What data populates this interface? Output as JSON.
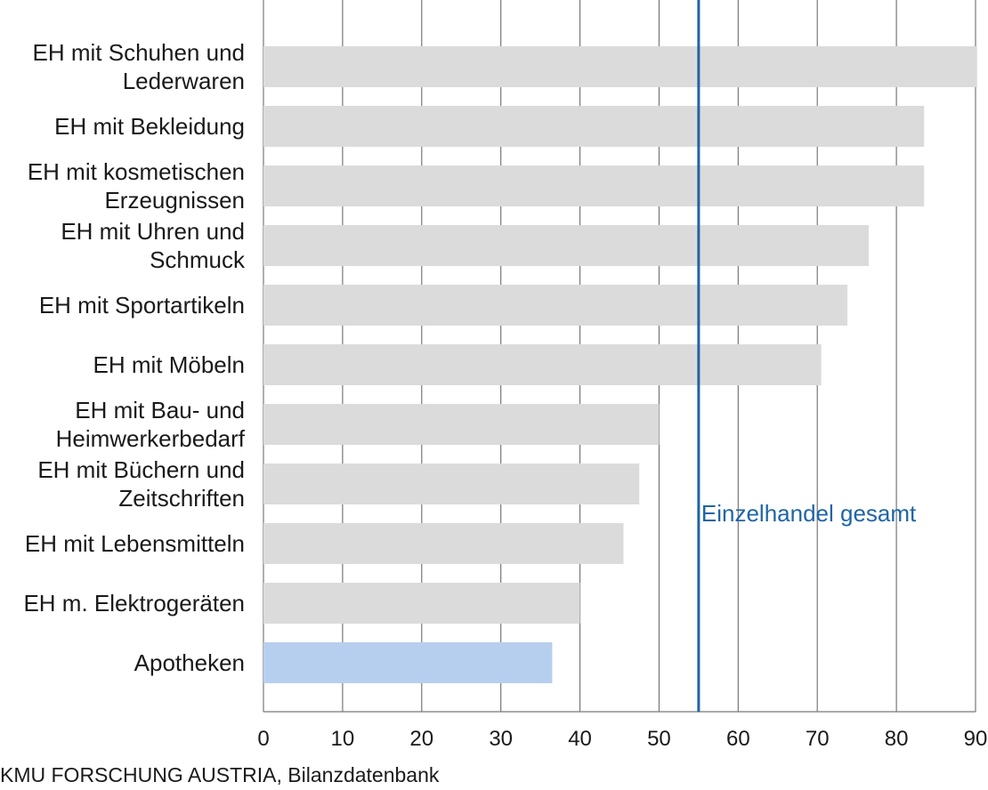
{
  "chart_data": {
    "type": "bar",
    "orientation": "horizontal",
    "categories": [
      [
        "EH mit Schuhen und",
        "Lederwaren"
      ],
      [
        "EH mit Bekleidung"
      ],
      [
        "EH mit kosmetischen",
        "Erzeugnissen"
      ],
      [
        "EH mit Uhren und",
        "Schmuck"
      ],
      [
        "EH mit Sportartikeln"
      ],
      [
        "EH mit Möbeln"
      ],
      [
        "EH mit Bau- und",
        "Heimwerkerbedarf"
      ],
      [
        "EH mit Büchern und",
        "Zeitschriften"
      ],
      [
        "EH mit Lebensmitteln"
      ],
      [
        "EH m. Elektrogeräten"
      ],
      [
        "Apotheken"
      ]
    ],
    "values": [
      90.2,
      83.5,
      83.5,
      76.5,
      73.8,
      70.5,
      50.0,
      47.5,
      45.5,
      40.0,
      36.5
    ],
    "highlight_index": 10,
    "xlim": [
      0,
      90
    ],
    "xticks": [
      0,
      10,
      20,
      30,
      40,
      50,
      60,
      70,
      80,
      90
    ],
    "grid": true,
    "reference_line": {
      "value": 55,
      "label": "Einzelhandel gesamt"
    },
    "colors": {
      "bar": "#dcdbdb",
      "highlight": "#b7cfee",
      "reference": "#1f65a6",
      "grid": "#777777"
    }
  },
  "source": "KMU FORSCHUNG AUSTRIA, Bilanzdatenbank"
}
